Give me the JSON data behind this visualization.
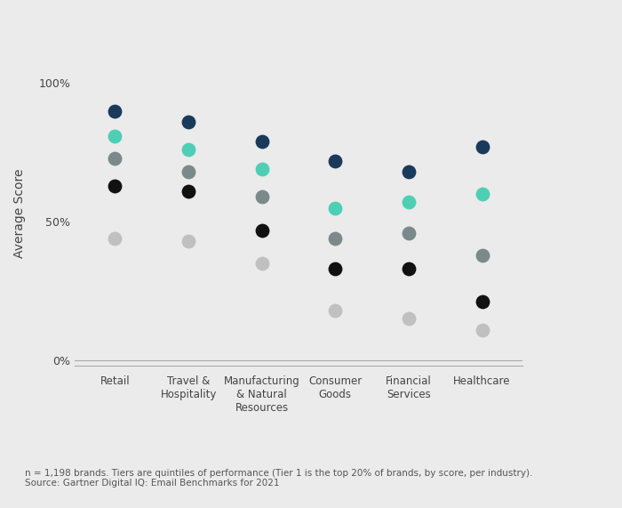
{
  "categories": [
    "Retail",
    "Travel &\nHospitality",
    "Manufacturing\n& Natural\nResources",
    "Consumer\nGoods",
    "Financial\nServices",
    "Healthcare"
  ],
  "tiers": {
    "Tier 1": {
      "color": "#1a3a5c",
      "values": [
        0.9,
        0.86,
        0.79,
        0.72,
        0.68,
        0.77
      ]
    },
    "Tier 2": {
      "color": "#4ecfb5",
      "values": [
        0.81,
        0.76,
        0.69,
        0.55,
        0.57,
        0.6
      ]
    },
    "Tier 3": {
      "color": "#7a8a8a",
      "values": [
        0.73,
        0.68,
        0.59,
        0.44,
        0.46,
        0.38
      ]
    },
    "Tier 4": {
      "color": "#111111",
      "values": [
        0.63,
        0.61,
        0.47,
        0.33,
        0.33,
        0.21
      ]
    },
    "Tier 5": {
      "color": "#c0c0c0",
      "values": [
        0.44,
        0.43,
        0.35,
        0.18,
        0.15,
        0.11
      ]
    }
  },
  "ylabel": "Average Score",
  "ylim": [
    -0.02,
    1.08
  ],
  "yticks": [
    0.0,
    0.5,
    1.0
  ],
  "ytick_labels": [
    "0%",
    "50%",
    "100%"
  ],
  "marker_size": 130,
  "background_color": "#ebebeb",
  "footnote": "n = 1,198 brands. Tiers are quintiles of performance (Tier 1 is the top 20% of brands, by score, per industry).\nSource: Gartner Digital IQ: Email Benchmarks for 2021"
}
